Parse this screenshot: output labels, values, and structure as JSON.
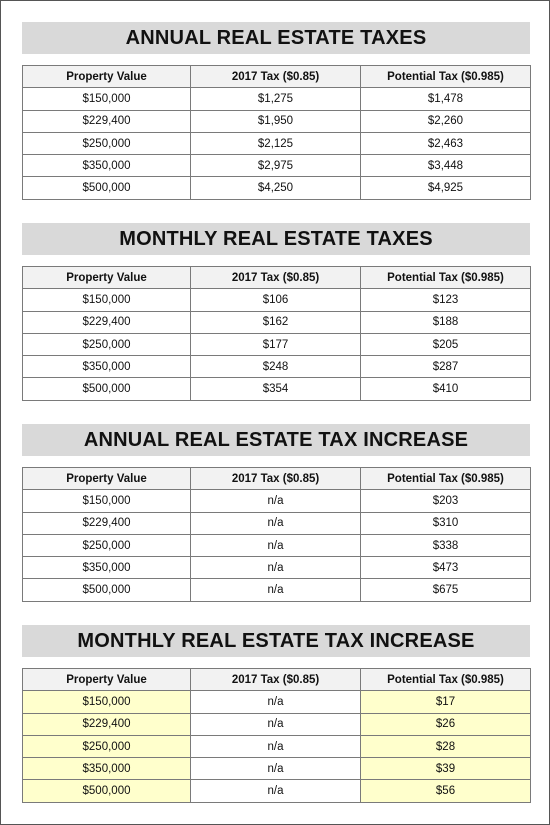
{
  "headers": [
    "Property Value",
    "2017 Tax ($0.85)",
    "Potential Tax ($0.985)"
  ],
  "highlight_color": "#ffffcc",
  "sections": [
    {
      "title": "ANNUAL REAL ESTATE TAXES",
      "rows": [
        [
          "$150,000",
          "$1,275",
          "$1,478"
        ],
        [
          "$229,400",
          "$1,950",
          "$2,260"
        ],
        [
          "$250,000",
          "$2,125",
          "$2,463"
        ],
        [
          "$350,000",
          "$2,975",
          "$3,448"
        ],
        [
          "$500,000",
          "$4,250",
          "$4,925"
        ]
      ]
    },
    {
      "title": "MONTHLY REAL ESTATE TAXES",
      "rows": [
        [
          "$150,000",
          "$106",
          "$123"
        ],
        [
          "$229,400",
          "$162",
          "$188"
        ],
        [
          "$250,000",
          "$177",
          "$205"
        ],
        [
          "$350,000",
          "$248",
          "$287"
        ],
        [
          "$500,000",
          "$354",
          "$410"
        ]
      ]
    },
    {
      "title": "ANNUAL REAL ESTATE TAX INCREASE",
      "rows": [
        [
          "$150,000",
          "n/a",
          "$203"
        ],
        [
          "$229,400",
          "n/a",
          "$310"
        ],
        [
          "$250,000",
          "n/a",
          "$338"
        ],
        [
          "$350,000",
          "n/a",
          "$473"
        ],
        [
          "$500,000",
          "n/a",
          "$675"
        ]
      ]
    },
    {
      "title": "MONTHLY REAL ESTATE TAX INCREASE",
      "rows": [
        [
          "$150,000",
          "n/a",
          "$17"
        ],
        [
          "$229,400",
          "n/a",
          "$26"
        ],
        [
          "$250,000",
          "n/a",
          "$28"
        ],
        [
          "$350,000",
          "n/a",
          "$39"
        ],
        [
          "$500,000",
          "n/a",
          "$56"
        ]
      ]
    }
  ]
}
